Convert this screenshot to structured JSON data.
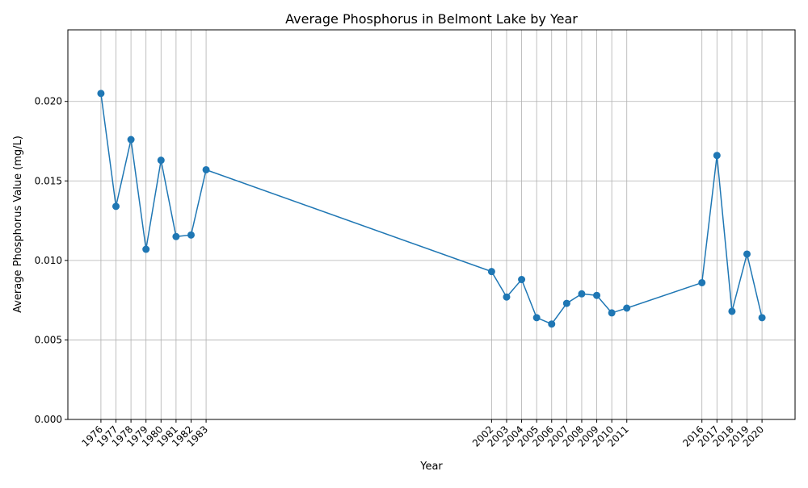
{
  "chart_data": {
    "type": "line",
    "title": "Average Phosphorus in Belmont Lake by Year",
    "xlabel": "Year",
    "ylabel": "Average Phosphorus Value (mg/L)",
    "x": [
      1976,
      1977,
      1978,
      1979,
      1980,
      1981,
      1982,
      1983,
      2002,
      2003,
      2004,
      2005,
      2006,
      2007,
      2008,
      2009,
      2010,
      2011,
      2016,
      2017,
      2018,
      2019,
      2020
    ],
    "series": [
      {
        "values": [
          0.0205,
          0.0134,
          0.0176,
          0.0107,
          0.0163,
          0.0115,
          0.0116,
          0.0157,
          0.0093,
          0.0077,
          0.0088,
          0.0064,
          0.006,
          0.0073,
          0.0079,
          0.0078,
          0.0067,
          0.007,
          0.0086,
          0.0166,
          0.0068,
          0.0104,
          0.0064
        ],
        "color": "#1f77b4",
        "marker": "circle"
      }
    ],
    "xlim": [
      1973.8,
      2022.2
    ],
    "ylim": [
      0.0,
      0.0245
    ],
    "yticks": [
      "0.000",
      "0.005",
      "0.010",
      "0.015",
      "0.020"
    ],
    "ytick_values": [
      0.0,
      0.005,
      0.01,
      0.015,
      0.02
    ],
    "xtick_labels": [
      "1976",
      "1977",
      "1978",
      "1979",
      "1980",
      "1981",
      "1982",
      "1983",
      "2002",
      "2003",
      "2004",
      "2005",
      "2006",
      "2007",
      "2008",
      "2009",
      "2010",
      "2011",
      "2016",
      "2017",
      "2018",
      "2019",
      "2020"
    ],
    "xtick_rotation": "45",
    "grid": true,
    "legend": "none"
  }
}
